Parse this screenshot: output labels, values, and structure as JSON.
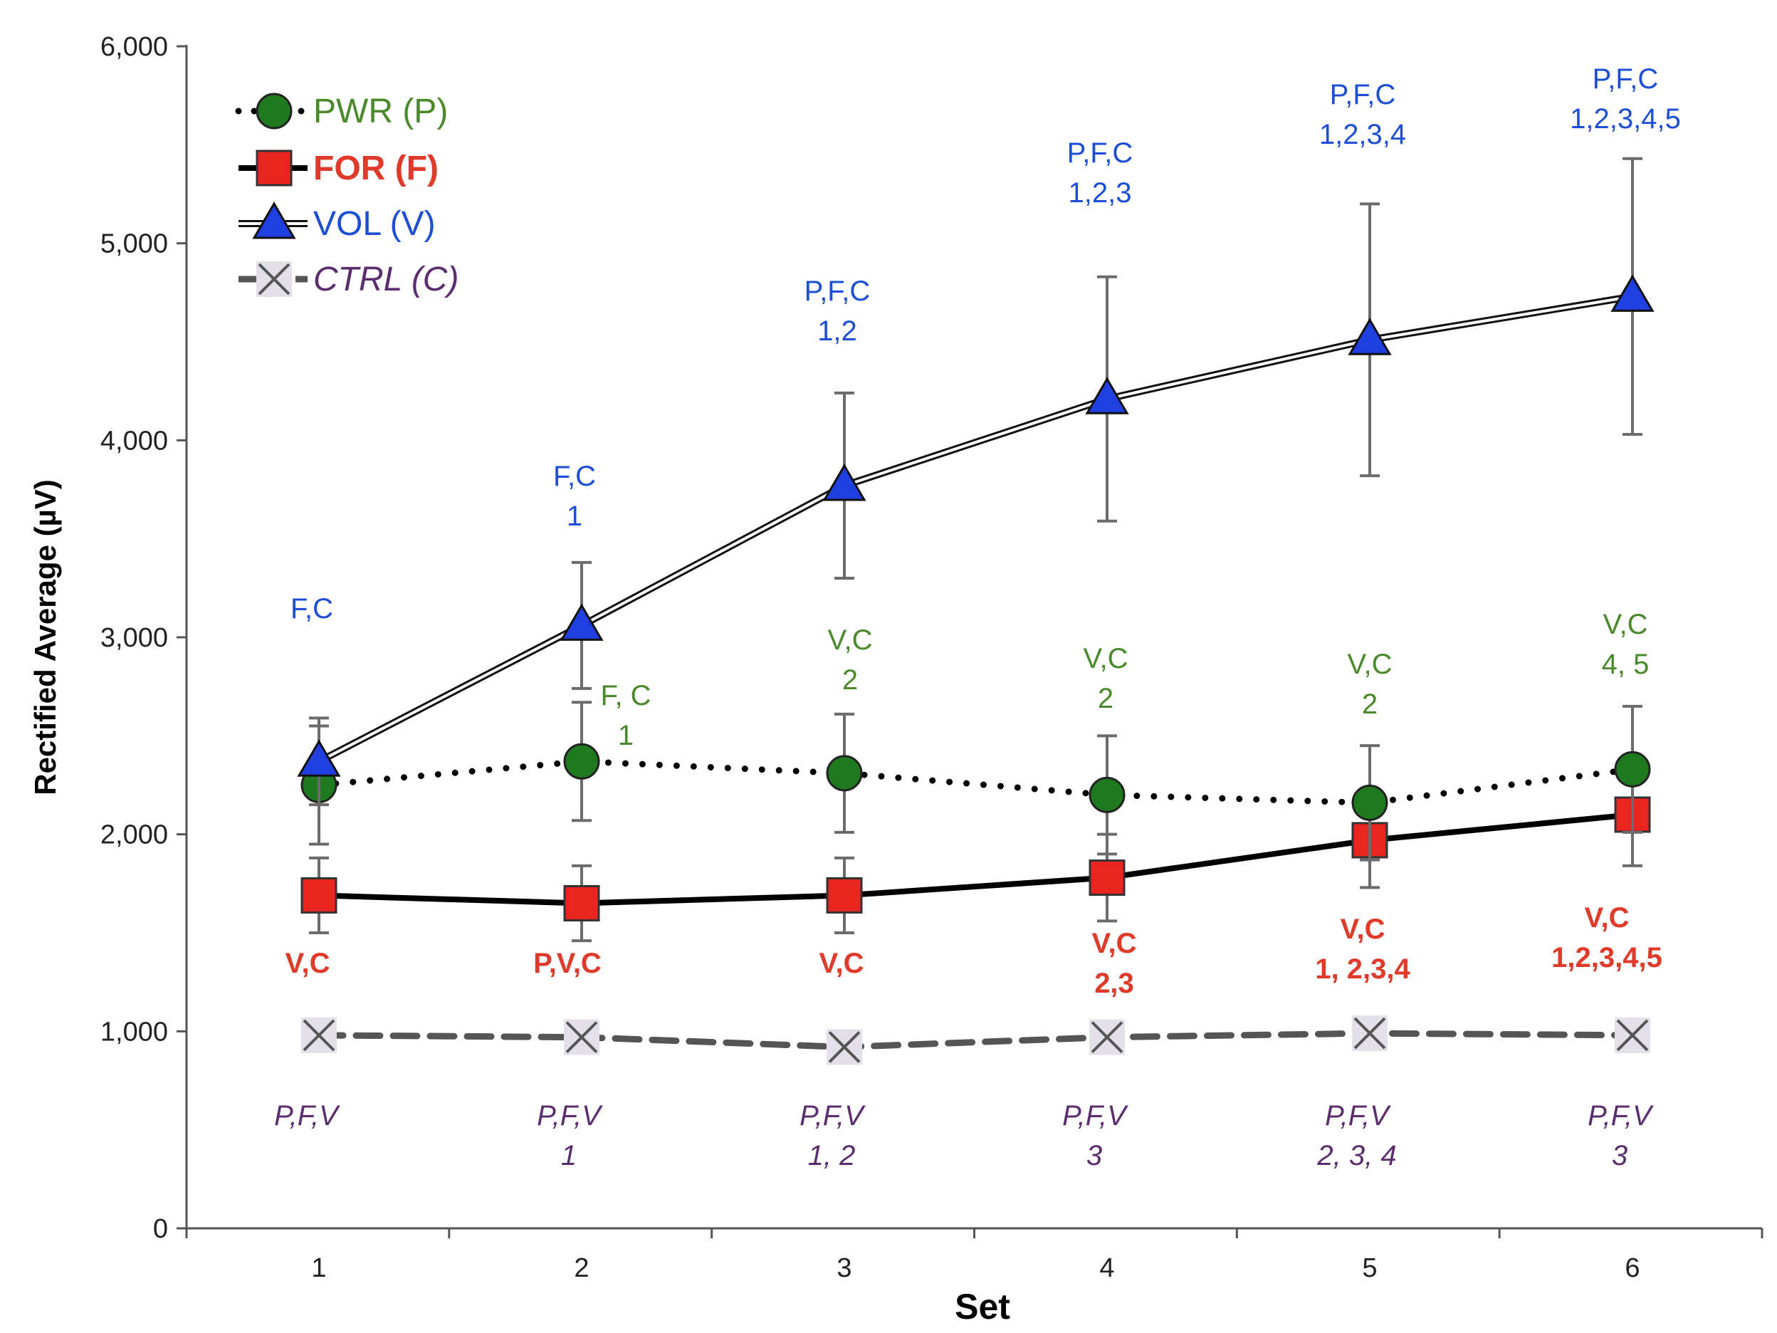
{
  "chart_data": {
    "type": "line",
    "title": "",
    "xlabel": "Set",
    "ylabel": "Rectified Average (µV)",
    "categories": [
      "1",
      "2",
      "3",
      "4",
      "5",
      "6"
    ],
    "ylim": [
      0,
      6000
    ],
    "yticks": [
      0,
      1000,
      2000,
      3000,
      4000,
      5000,
      6000
    ],
    "ytick_labels": [
      "0",
      "1,000",
      "2,000",
      "3,000",
      "4,000",
      "5,000",
      "6,000"
    ],
    "grid": false,
    "legend_position": "top-left",
    "series": [
      {
        "key": "pwr",
        "name": "PWR (P)",
        "color": "#4a8a2a",
        "marker_color": "#1f7a1f",
        "line_style": "dotted",
        "marker": "circle",
        "values": [
          2250,
          2370,
          2310,
          2200,
          2160,
          2330
        ],
        "errors": [
          300,
          300,
          300,
          300,
          290,
          320
        ],
        "annotations": [
          [],
          [
            "F, C",
            "1"
          ],
          [
            "V,C",
            "2"
          ],
          [
            "V,C",
            "2"
          ],
          [
            "V,C",
            "2"
          ],
          [
            "V,C",
            "4, 5"
          ]
        ]
      },
      {
        "key": "for",
        "name": "FOR (F)",
        "color": "#e03a2a",
        "marker_color": "#e8251f",
        "line_style": "solid-thick",
        "marker": "square",
        "values": [
          1690,
          1650,
          1690,
          1780,
          1970,
          2100
        ],
        "errors": [
          190,
          190,
          190,
          220,
          240,
          260
        ],
        "annotations": [
          [
            "V,C"
          ],
          [
            "P,V,C"
          ],
          [
            "V,C"
          ],
          [
            "V,C",
            "2,3"
          ],
          [
            "V,C",
            "1, 2,3,4"
          ],
          [
            "V,C",
            "1,2,3,4,5"
          ]
        ]
      },
      {
        "key": "vol",
        "name": "VOL (V)",
        "color": "#1d4fd6",
        "marker_color": "#1f3fe0",
        "line_style": "double",
        "marker": "triangle",
        "values": [
          2370,
          3060,
          3770,
          4210,
          4510,
          4730
        ],
        "errors": [
          220,
          320,
          470,
          620,
          690,
          700
        ],
        "annotations": [
          [
            "F,C"
          ],
          [
            "F,C",
            "1"
          ],
          [
            "P,F,C",
            "1,2"
          ],
          [
            "P,F,C",
            "1,2,3"
          ],
          [
            "P,F,C",
            "1,2,3,4"
          ],
          [
            "P,F,C",
            "1,2,3,4,5"
          ]
        ]
      },
      {
        "key": "ctrl",
        "name": "CTRL (C)",
        "color": "#5b2d6e",
        "marker_color": "#555555",
        "line_style": "dashed",
        "marker": "x",
        "values": [
          980,
          970,
          920,
          970,
          990,
          980
        ],
        "errors": [
          0,
          0,
          0,
          0,
          0,
          0
        ],
        "annotations": [
          [
            "P,F,V"
          ],
          [
            "P,F,V",
            "1"
          ],
          [
            "P,F,V",
            "1, 2"
          ],
          [
            "P,F,V",
            "3"
          ],
          [
            "P,F,V",
            "2, 3, 4"
          ],
          [
            "P,F,V",
            "3"
          ]
        ]
      }
    ]
  }
}
